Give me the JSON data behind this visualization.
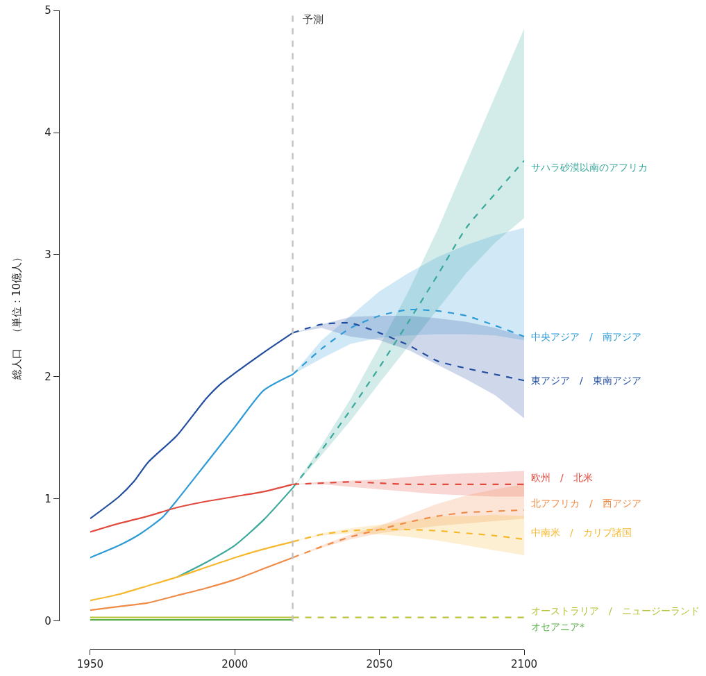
{
  "chart_data": {
    "type": "line",
    "ylabel": "総人口　（単位：10億人）",
    "xlim": [
      1950,
      2100
    ],
    "xticks": [
      1950,
      2000,
      2050,
      2100
    ],
    "ylim": [
      0,
      5
    ],
    "yticks": [
      0,
      1,
      2,
      3,
      4,
      5
    ],
    "grid": false,
    "legend": false,
    "marker": "none",
    "ref_lines": [
      {
        "axis": "x",
        "value": 2020,
        "label": "予測",
        "color": "#c4c4c4",
        "line_style": "dashed"
      }
    ],
    "series": [
      {
        "color": "#3aa89a",
        "line_style": "solid",
        "x": [
          1980,
          1990,
          2000,
          2010,
          2020
        ],
        "values": [
          0.36,
          0.48,
          0.62,
          0.83,
          1.09
        ]
      },
      {
        "name": "サハラ砂漠以南のアフリカ",
        "color": "#3aa89a",
        "line_style": "dashed",
        "x": [
          2020,
          2030,
          2040,
          2050,
          2060,
          2070,
          2080,
          2090,
          2100
        ],
        "values": [
          1.09,
          1.4,
          1.73,
          2.08,
          2.45,
          2.83,
          3.22,
          3.5,
          3.77
        ],
        "lower": [
          1.09,
          1.36,
          1.64,
          1.95,
          2.25,
          2.55,
          2.85,
          3.1,
          3.3
        ],
        "upper": [
          1.09,
          1.44,
          1.82,
          2.25,
          2.7,
          3.2,
          3.75,
          4.3,
          4.85
        ]
      },
      {
        "color": "#2e9bd6",
        "line_style": "solid",
        "x": [
          1950,
          1960,
          1967,
          1975,
          1980,
          1990,
          2000,
          2010,
          2020
        ],
        "values": [
          0.52,
          0.62,
          0.71,
          0.85,
          0.99,
          1.29,
          1.59,
          1.89,
          2.02
        ]
      },
      {
        "name": "中央アジア　/　南アジア",
        "color": "#2e9bd6",
        "line_style": "dashed",
        "x": [
          2020,
          2030,
          2040,
          2050,
          2060,
          2070,
          2080,
          2090,
          2100
        ],
        "values": [
          2.02,
          2.23,
          2.4,
          2.5,
          2.55,
          2.54,
          2.5,
          2.42,
          2.33
        ],
        "lower": [
          2.02,
          2.15,
          2.27,
          2.32,
          2.34,
          2.35,
          2.35,
          2.34,
          2.3
        ],
        "upper": [
          2.02,
          2.3,
          2.5,
          2.7,
          2.85,
          2.98,
          3.08,
          3.16,
          3.22
        ]
      },
      {
        "color": "#234ea0",
        "line_style": "solid",
        "x": [
          1950,
          1960,
          1965,
          1970,
          1980,
          1990,
          1995,
          2000,
          2010,
          2020
        ],
        "values": [
          0.84,
          1.02,
          1.14,
          1.3,
          1.52,
          1.82,
          1.94,
          2.03,
          2.2,
          2.36
        ]
      },
      {
        "name": "東アジア　/　東南アジア",
        "color": "#234ea0",
        "line_style": "dashed",
        "x": [
          2020,
          2030,
          2040,
          2050,
          2060,
          2070,
          2080,
          2090,
          2100
        ],
        "values": [
          2.36,
          2.43,
          2.44,
          2.36,
          2.26,
          2.13,
          2.07,
          2.02,
          1.97
        ],
        "lower": [
          2.36,
          2.4,
          2.33,
          2.3,
          2.22,
          2.1,
          1.98,
          1.85,
          1.66
        ],
        "upper": [
          2.36,
          2.43,
          2.49,
          2.5,
          2.5,
          2.48,
          2.45,
          2.4,
          2.33
        ]
      },
      {
        "color": "#e04a3f",
        "line_style": "solid",
        "x": [
          1950,
          1960,
          1970,
          1980,
          1990,
          2000,
          2010,
          2020
        ],
        "values": [
          0.73,
          0.8,
          0.86,
          0.93,
          0.98,
          1.02,
          1.06,
          1.12
        ]
      },
      {
        "name": "欧州　/　北米",
        "color": "#e04a3f",
        "line_style": "dashed",
        "x": [
          2020,
          2030,
          2040,
          2050,
          2060,
          2070,
          2080,
          2090,
          2100
        ],
        "values": [
          1.12,
          1.13,
          1.14,
          1.13,
          1.12,
          1.12,
          1.12,
          1.12,
          1.12
        ],
        "lower": [
          1.12,
          1.12,
          1.1,
          1.08,
          1.06,
          1.04,
          1.03,
          1.02,
          1.02
        ],
        "upper": [
          1.12,
          1.14,
          1.15,
          1.16,
          1.18,
          1.2,
          1.21,
          1.22,
          1.23
        ]
      },
      {
        "color": "#f08a47",
        "line_style": "solid",
        "x": [
          1950,
          1960,
          1970,
          1980,
          1990,
          2000,
          2010,
          2020
        ],
        "values": [
          0.09,
          0.12,
          0.15,
          0.21,
          0.27,
          0.34,
          0.43,
          0.52
        ]
      },
      {
        "name": "北アフリカ　/　西アジア",
        "color": "#f08a47",
        "line_style": "dashed",
        "x": [
          2020,
          2030,
          2040,
          2050,
          2060,
          2070,
          2080,
          2090,
          2100
        ],
        "values": [
          0.52,
          0.61,
          0.69,
          0.75,
          0.81,
          0.86,
          0.89,
          0.9,
          0.91
        ],
        "lower": [
          0.52,
          0.6,
          0.67,
          0.72,
          0.75,
          0.78,
          0.8,
          0.82,
          0.84
        ],
        "upper": [
          0.52,
          0.62,
          0.71,
          0.78,
          0.87,
          0.96,
          1.03,
          1.08,
          1.12
        ]
      },
      {
        "color": "#f5b82e",
        "line_style": "solid",
        "x": [
          1950,
          1960,
          1970,
          1980,
          1990,
          2000,
          2010,
          2020
        ],
        "values": [
          0.17,
          0.22,
          0.29,
          0.36,
          0.44,
          0.52,
          0.59,
          0.65
        ]
      },
      {
        "name": "中南米　/　カリブ諸国",
        "color": "#f5b82e",
        "line_style": "dashed",
        "x": [
          2020,
          2030,
          2040,
          2050,
          2060,
          2070,
          2080,
          2090,
          2100
        ],
        "values": [
          0.65,
          0.71,
          0.74,
          0.75,
          0.75,
          0.74,
          0.72,
          0.7,
          0.67
        ],
        "lower": [
          0.65,
          0.7,
          0.72,
          0.71,
          0.69,
          0.66,
          0.62,
          0.58,
          0.54
        ],
        "upper": [
          0.65,
          0.72,
          0.76,
          0.79,
          0.82,
          0.86,
          0.86,
          0.87,
          0.86
        ]
      },
      {
        "color": "#b8c43a",
        "line_style": "solid",
        "x": [
          1950,
          2020
        ],
        "values": [
          0.03,
          0.03
        ]
      },
      {
        "name": "オーストラリア　/　ニュージーランド",
        "color": "#b8c43a",
        "line_style": "dashed",
        "x": [
          2020,
          2100
        ],
        "values": [
          0.03,
          0.03
        ]
      },
      {
        "name": "オセアニア*",
        "color": "#5cb04c",
        "line_style": "solid",
        "x": [
          1950,
          2020
        ],
        "values": [
          0.01,
          0.01
        ]
      }
    ]
  }
}
